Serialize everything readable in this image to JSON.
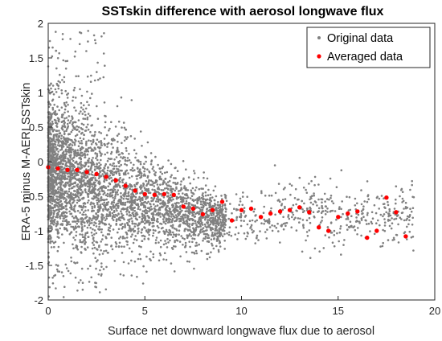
{
  "chart_data": {
    "type": "scatter",
    "title": "SSTskin difference with aerosol longwave flux",
    "xlabel": "Surface net downward longwave flux due to aerosol",
    "ylabel": "ERA-5 minus M-AERI SSTskin",
    "xlim": [
      0,
      20
    ],
    "ylim": [
      -2,
      2
    ],
    "x_ticks": [
      "0",
      "5",
      "10",
      "15",
      "20"
    ],
    "y_ticks": [
      "2",
      "1.5",
      "1",
      "0.5",
      "0",
      "-0.5",
      "-1",
      "-1.5",
      "-2"
    ],
    "grid": false,
    "legend_position": "top-right",
    "series": [
      {
        "name": "Original data",
        "color": "#808080",
        "marker": "point",
        "description_clusters": [
          {
            "x_range": [
              0,
              3
            ],
            "y_mean": -0.2,
            "y_spread": 0.7
          },
          {
            "x_range": [
              3,
              6
            ],
            "y_mean": -0.4,
            "y_spread": 0.55
          },
          {
            "x_range": [
              6,
              9
            ],
            "y_mean": -0.6,
            "y_spread": 0.45
          },
          {
            "x_range": [
              9,
              19
            ],
            "y_mean": -0.8,
            "y_spread": 0.35
          }
        ]
      },
      {
        "name": "Averaged data",
        "color": "#ff0000",
        "marker": "dot",
        "x": [
          0,
          0.5,
          1.0,
          1.5,
          2.0,
          2.5,
          3.0,
          3.5,
          4.0,
          4.5,
          5.0,
          5.5,
          6.0,
          6.5,
          7.0,
          7.5,
          8.0,
          8.5,
          9.0,
          9.5,
          10.0,
          10.5,
          11.0,
          11.5,
          12.0,
          12.5,
          13.0,
          13.5,
          14.0,
          14.5,
          15.0,
          15.5,
          16.0,
          16.5,
          17.0,
          17.5,
          18.0,
          18.5
        ],
        "y": [
          -0.08,
          -0.1,
          -0.12,
          -0.12,
          -0.15,
          -0.18,
          -0.22,
          -0.27,
          -0.35,
          -0.42,
          -0.47,
          -0.48,
          -0.47,
          -0.48,
          -0.65,
          -0.68,
          -0.76,
          -0.7,
          -0.58,
          -0.85,
          -0.7,
          -0.68,
          -0.8,
          -0.75,
          -0.72,
          -0.7,
          -0.66,
          -0.73,
          -0.95,
          -1.0,
          -0.8,
          -0.75,
          -0.72,
          -1.1,
          -1.0,
          -0.52,
          -0.73,
          -1.08
        ]
      }
    ]
  }
}
